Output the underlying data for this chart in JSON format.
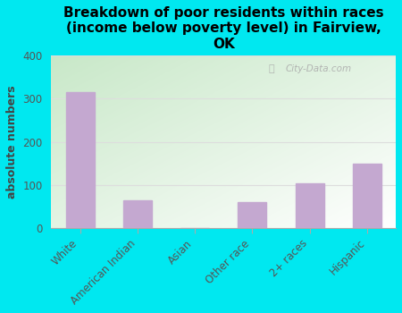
{
  "categories": [
    "White",
    "American Indian",
    "Asian",
    "Other race",
    "2+ races",
    "Hispanic"
  ],
  "values": [
    315,
    65,
    0,
    60,
    103,
    150
  ],
  "bar_color": "#c4a8d0",
  "title": "Breakdown of poor residents within races\n(income below poverty level) in Fairview,\nOK",
  "ylabel": "absolute numbers",
  "ylim": [
    0,
    400
  ],
  "yticks": [
    0,
    100,
    200,
    300,
    400
  ],
  "background_color": "#00e8f0",
  "plot_bg_color_topleft": "#c8e8c8",
  "plot_bg_color_bottomright": "#ffffff",
  "watermark": "City-Data.com",
  "title_fontsize": 11,
  "ylabel_fontsize": 9,
  "tick_fontsize": 8.5
}
